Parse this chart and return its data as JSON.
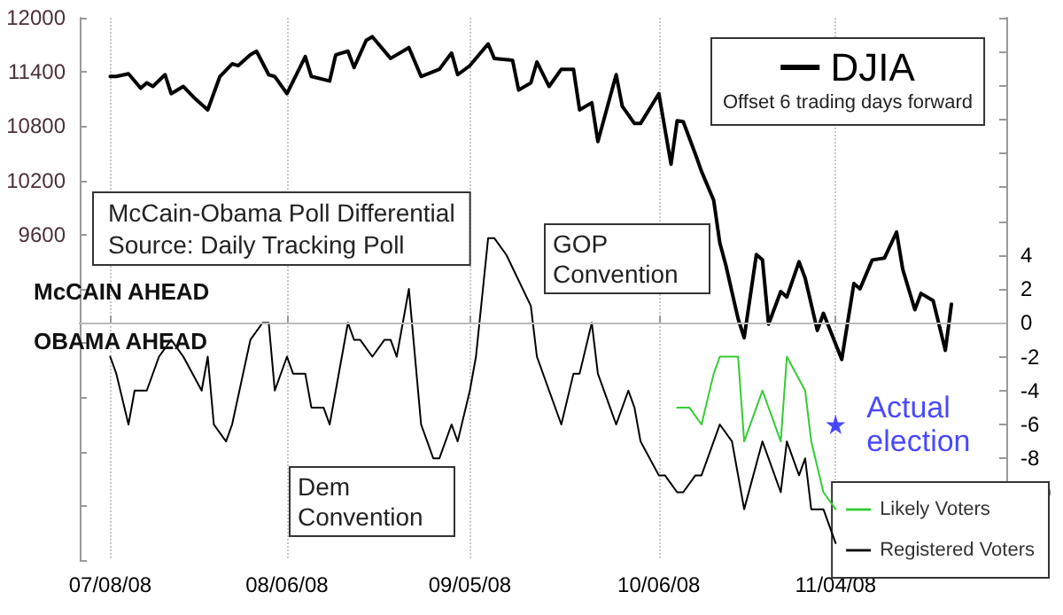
{
  "chart_data": {
    "type": "line",
    "annotations": [
      "McCain-Obama Poll Differential",
      "Source: Daily Tracking Poll",
      "Offset 6 trading days forward",
      "McCAIN AHEAD",
      "OBAMA AHEAD",
      "GOP Convention",
      "Dem Convention"
    ],
    "xlim": [
      "2008-07-03",
      "2008-12-02"
    ],
    "xticks": [
      {
        "value": "2008-07-08",
        "label": "07/08/08"
      },
      {
        "value": "2008-08-06",
        "label": "08/06/08"
      },
      {
        "value": "2008-09-05",
        "label": "09/05/08"
      },
      {
        "value": "2008-10-06",
        "label": "10/06/08"
      },
      {
        "value": "2008-11-04",
        "label": "11/04/08"
      }
    ],
    "ylim": [
      6000,
      12000
    ],
    "yticks": [
      {
        "value": 6000,
        "label": null
      },
      {
        "value": 6600,
        "label": null
      },
      {
        "value": 7200,
        "label": null
      },
      {
        "value": 7800,
        "label": null
      },
      {
        "value": 8400,
        "label": null
      },
      {
        "value": 9000,
        "label": null
      },
      9600,
      10200,
      10800,
      11400,
      12000
    ],
    "y2lim": [
      -14,
      18
    ],
    "y2ticks": [
      {
        "value": -14,
        "label": null
      },
      {
        "value": -12,
        "label": null
      },
      -10,
      -8,
      -6,
      -4,
      -2,
      0,
      2,
      4,
      {
        "value": 6,
        "label": null
      },
      {
        "value": 8,
        "label": null
      },
      {
        "value": 10,
        "label": null
      },
      {
        "value": 12,
        "label": null
      },
      {
        "value": 14,
        "label": null
      },
      {
        "value": 16,
        "label": null
      },
      {
        "value": 18,
        "label": null
      }
    ],
    "grid": "x",
    "legend": "bottom right",
    "ref_lines": [
      {
        "axis": "y2",
        "value": 0,
        "color": "#bbbbbb"
      }
    ],
    "series": [
      {
        "name": "DJIA",
        "color": "#000000",
        "x": [
          "2008-07-08",
          "2008-07-09",
          "2008-07-11",
          "2008-07-13",
          "2008-07-14",
          "2008-07-15",
          "2008-07-17",
          "2008-07-18",
          "2008-07-20",
          "2008-07-22",
          "2008-07-24",
          "2008-07-26",
          "2008-07-28",
          "2008-07-29",
          "2008-07-31",
          "2008-08-01",
          "2008-08-03",
          "2008-08-04",
          "2008-08-06",
          "2008-08-09",
          "2008-08-10",
          "2008-08-13",
          "2008-08-14",
          "2008-08-16",
          "2008-08-17",
          "2008-08-19",
          "2008-08-20",
          "2008-08-23",
          "2008-08-26",
          "2008-08-28",
          "2008-08-31",
          "2008-09-02",
          "2008-09-03",
          "2008-09-05",
          "2008-09-08",
          "2008-09-09",
          "2008-09-12",
          "2008-09-13",
          "2008-09-15",
          "2008-09-16",
          "2008-09-18",
          "2008-09-20",
          "2008-09-22",
          "2008-09-23",
          "2008-09-25",
          "2008-09-26",
          "2008-09-29",
          "2008-09-30",
          "2008-10-02",
          "2008-10-03",
          "2008-10-06",
          "2008-10-08",
          "2008-10-09",
          "2008-10-10",
          "2008-10-12",
          "2008-10-13",
          "2008-10-15",
          "2008-10-16",
          "2008-10-17",
          "2008-10-19",
          "2008-10-20",
          "2008-10-22",
          "2008-10-23",
          "2008-10-24",
          "2008-10-26",
          "2008-10-27",
          "2008-10-29",
          "2008-10-30",
          "2008-11-01",
          "2008-11-02",
          "2008-11-05",
          "2008-11-07",
          "2008-11-08",
          "2008-11-10",
          "2008-11-12",
          "2008-11-14",
          "2008-11-15",
          "2008-11-17",
          "2008-11-18",
          "2008-11-20",
          "2008-11-22",
          "2008-11-23"
        ],
        "values": [
          11350,
          11350,
          11380,
          11220,
          11280,
          11240,
          11370,
          11160,
          11240,
          11100,
          10980,
          11350,
          11490,
          11470,
          11590,
          11630,
          11370,
          11350,
          11160,
          11570,
          11350,
          11300,
          11590,
          11630,
          11450,
          11750,
          11790,
          11550,
          11670,
          11350,
          11430,
          11610,
          11370,
          11470,
          11710,
          11550,
          11530,
          11200,
          11280,
          11510,
          11240,
          11430,
          11430,
          10980,
          11060,
          10630,
          11370,
          11020,
          10830,
          10830,
          11160,
          10380,
          10860,
          10850,
          10490,
          10300,
          9980,
          9510,
          9260,
          8670,
          8460,
          9380,
          9320,
          8610,
          8970,
          8910,
          9300,
          9120,
          8540,
          8730,
          8220,
          9060,
          9000,
          9320,
          9340,
          9630,
          9220,
          8770,
          8950,
          8870,
          8320,
          8830
        ]
      },
      {
        "name": "Likely Voters",
        "color": "#33cc33",
        "axis": "y2",
        "x": [
          "2008-10-09",
          "2008-10-11",
          "2008-10-13",
          "2008-10-15",
          "2008-10-16",
          "2008-10-19",
          "2008-10-20",
          "2008-10-23",
          "2008-10-26",
          "2008-10-27",
          "2008-10-30",
          "2008-10-31",
          "2008-11-02",
          "2008-11-04"
        ],
        "values": [
          -5,
          -5,
          -6,
          -3,
          -2,
          -2,
          -7,
          -4,
          -7,
          -2,
          -4,
          -7,
          -10,
          -11
        ]
      },
      {
        "name": "Registered Voters",
        "color": "#000000",
        "axis": "y2",
        "x": [
          "2008-07-08",
          "2008-07-09",
          "2008-07-11",
          "2008-07-12",
          "2008-07-14",
          "2008-07-16",
          "2008-07-18",
          "2008-07-20",
          "2008-07-23",
          "2008-07-24",
          "2008-07-25",
          "2008-07-27",
          "2008-07-28",
          "2008-07-31",
          "2008-08-02",
          "2008-08-03",
          "2008-08-04",
          "2008-08-06",
          "2008-08-07",
          "2008-08-09",
          "2008-08-10",
          "2008-08-12",
          "2008-08-13",
          "2008-08-16",
          "2008-08-17",
          "2008-08-18",
          "2008-08-20",
          "2008-08-22",
          "2008-08-23",
          "2008-08-24",
          "2008-08-26",
          "2008-08-28",
          "2008-08-30",
          "2008-08-31",
          "2008-09-02",
          "2008-09-03",
          "2008-09-05",
          "2008-09-06",
          "2008-09-08",
          "2008-09-09",
          "2008-09-11",
          "2008-09-15",
          "2008-09-16",
          "2008-09-18",
          "2008-09-20",
          "2008-09-22",
          "2008-09-23",
          "2008-09-25",
          "2008-09-26",
          "2008-09-28",
          "2008-09-29",
          "2008-10-01",
          "2008-10-02",
          "2008-10-03",
          "2008-10-06",
          "2008-10-07",
          "2008-10-09",
          "2008-10-10",
          "2008-10-12",
          "2008-10-13",
          "2008-10-15",
          "2008-10-16",
          "2008-10-18",
          "2008-10-20",
          "2008-10-23",
          "2008-10-26",
          "2008-10-27",
          "2008-10-29",
          "2008-10-30",
          "2008-10-31",
          "2008-11-02",
          "2008-11-04"
        ],
        "values": [
          -2,
          -3,
          -6,
          -4,
          -4,
          -2,
          -1,
          -2,
          -4,
          -2,
          -6,
          -7,
          -6,
          -1,
          0,
          0,
          -4,
          -2,
          -3,
          -3,
          -5,
          -5,
          -6,
          0,
          -1,
          -1,
          -2,
          -1,
          -1,
          -2,
          2,
          -6,
          -8,
          -8,
          -6,
          -7,
          -4,
          -2,
          5,
          5,
          4,
          1,
          -2,
          -4,
          -6,
          -3,
          -3,
          0,
          -3,
          -5,
          -6,
          -4,
          -5,
          -7,
          -9,
          -9,
          -10,
          -10,
          -9,
          -9,
          -7,
          -6,
          -7,
          -11,
          -7,
          -10,
          -7,
          -9,
          -8,
          -11,
          -11,
          -13
        ]
      },
      {
        "name": "Actual election",
        "type": "scatter",
        "marker": "star",
        "color": "#1a1aff",
        "axis": "y2",
        "x": [
          "2008-11-04"
        ],
        "values": [
          -6
        ]
      }
    ]
  }
}
